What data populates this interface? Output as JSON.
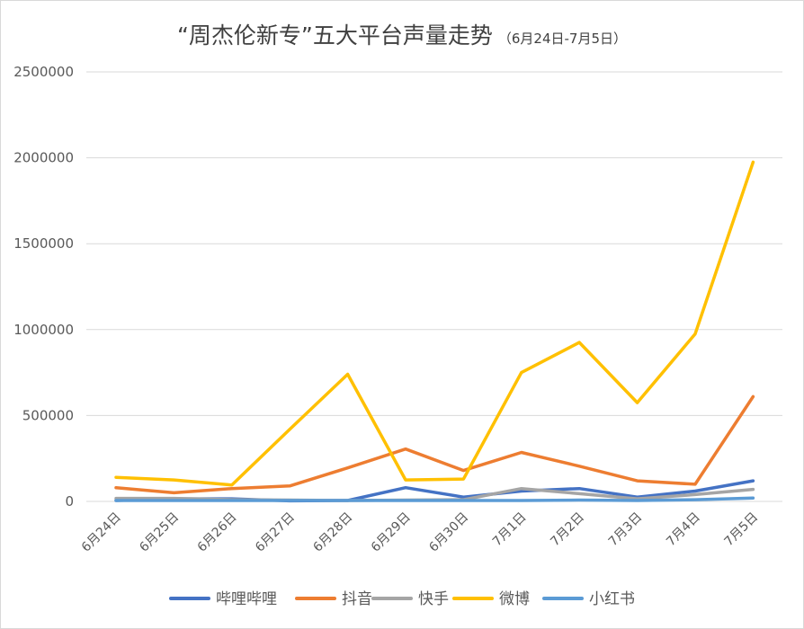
{
  "chart_data": {
    "type": "line",
    "title": "“周杰伦新专”五大平台声量走势",
    "subtitle": "（6月24日-7月5日）",
    "xlabel": "",
    "ylabel": "",
    "categories": [
      "6月24日",
      "6月25日",
      "6月26日",
      "6月27日",
      "6月28日",
      "6月29日",
      "6月30日",
      "7月1日",
      "7月2日",
      "7月3日",
      "7月4日",
      "7月5日"
    ],
    "yticks": [
      "0",
      "500000",
      "1000000",
      "1500000",
      "2000000",
      "2500000"
    ],
    "ylim": [
      0,
      2500000
    ],
    "grid": true,
    "legend_position": "bottom",
    "series": [
      {
        "name": "哔哩哔哩",
        "color": "#4472C4",
        "values": [
          5000,
          15000,
          15000,
          3000,
          5000,
          80000,
          25000,
          60000,
          75000,
          25000,
          60000,
          120000
        ]
      },
      {
        "name": "抖音",
        "color": "#ED7D31",
        "values": [
          80000,
          50000,
          75000,
          90000,
          195000,
          305000,
          180000,
          285000,
          205000,
          120000,
          100000,
          610000
        ]
      },
      {
        "name": "快手",
        "color": "#A5A5A5",
        "values": [
          18000,
          18000,
          10000,
          8000,
          5000,
          8000,
          10000,
          75000,
          45000,
          15000,
          40000,
          70000
        ]
      },
      {
        "name": "微博",
        "color": "#FFC000",
        "values": [
          140000,
          125000,
          95000,
          420000,
          740000,
          125000,
          130000,
          750000,
          925000,
          575000,
          975000,
          1975000
        ]
      },
      {
        "name": "小红书",
        "color": "#5B9BD5",
        "values": [
          5000,
          5000,
          5000,
          5000,
          5000,
          5000,
          5000,
          5000,
          8000,
          5000,
          10000,
          20000
        ]
      }
    ]
  }
}
